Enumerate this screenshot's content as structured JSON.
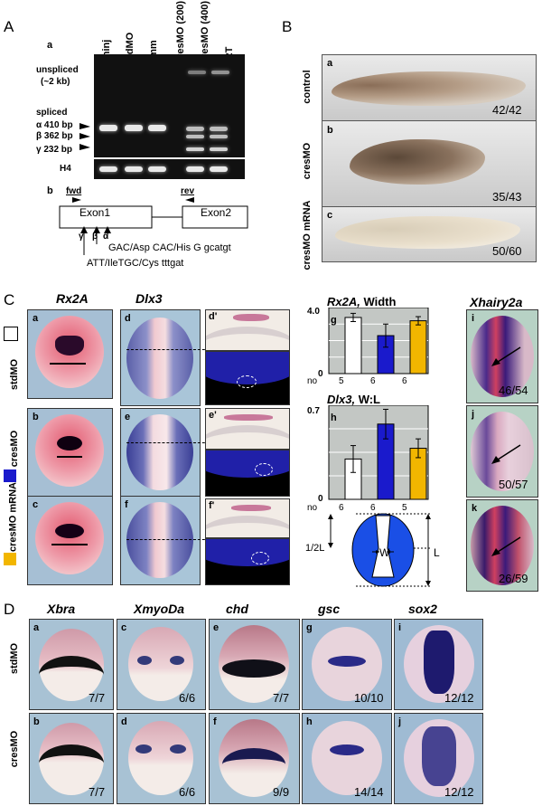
{
  "A": {
    "letter": "A",
    "a": {
      "sub": "a",
      "lanes": [
        "uninj",
        "stdMO",
        "5mm",
        "cresMO (200)",
        "cresMO (400)",
        "-RT"
      ],
      "unspliced": "unspliced",
      "unspliced_size": "(~2 kb)",
      "spliced": "spliced",
      "alpha": "α 410 bp",
      "beta": "β 362 bp",
      "gamma": "γ 232 bp",
      "h4": "H4"
    },
    "b": {
      "sub": "b",
      "fwd": "fwd",
      "rev": "rev",
      "exon1": "Exon1",
      "exon2": "Exon2",
      "gamma": "γ",
      "beta": "β",
      "alpha": "α",
      "seq_top": "GAC/Asp CAC/His G gcatgt",
      "seq_bottom": "ATT/IleTGC/Cys tttgat"
    }
  },
  "B": {
    "letter": "B",
    "panels": [
      {
        "sub": "a",
        "label": "control",
        "count": "42/42"
      },
      {
        "sub": "b",
        "label": "cresMO",
        "count": "35/43"
      },
      {
        "sub": "c",
        "label": "cresMO mRNA",
        "count": "50/60"
      }
    ]
  },
  "C": {
    "letter": "C",
    "col_rx2a": "Rx2A",
    "col_dlx3": "Dlx3",
    "row_labels": [
      "stdMO",
      "cresMO",
      "cresMO mRNA"
    ],
    "subs": [
      "a",
      "b",
      "c",
      "d",
      "e",
      "f",
      "d'",
      "e'",
      "f'"
    ],
    "g": {
      "sub": "g",
      "title_gene": "Rx2A,",
      "title_rest": " Width",
      "ymax": "4.0",
      "ymin": "0",
      "no": "no",
      "n": [
        "5",
        "6",
        "6"
      ]
    },
    "h": {
      "sub": "h",
      "title_gene": "Dlx3,",
      "title_rest": " W:L",
      "ymax": "0.7",
      "ymin": "0",
      "no": "no",
      "n": [
        "6",
        "6",
        "5"
      ]
    },
    "diagram": {
      "half": "1/2L",
      "w": "W",
      "l": "L"
    },
    "xhairy": {
      "title": "Xhairy2a",
      "panels": [
        {
          "sub": "i",
          "count": "46/54"
        },
        {
          "sub": "j",
          "count": "50/57"
        },
        {
          "sub": "k",
          "count": "26/59"
        }
      ]
    },
    "colors": {
      "std": "#ffffff",
      "cres": "#1a1acc",
      "mrna": "#f2b600"
    }
  },
  "chart_data": [
    {
      "type": "bar",
      "title": "Rx2A, Width",
      "categories": [
        "stdMO",
        "cresMO",
        "cresMO mRNA"
      ],
      "values": [
        3.4,
        2.3,
        3.2
      ],
      "errors": [
        0.25,
        0.7,
        0.25
      ],
      "ylim": [
        0,
        4.0
      ],
      "grid": true
    },
    {
      "type": "bar",
      "title": "Dlx3, W:L",
      "categories": [
        "stdMO",
        "cresMO",
        "cresMO mRNA"
      ],
      "values": [
        0.3,
        0.56,
        0.38
      ],
      "errors": [
        0.1,
        0.11,
        0.07
      ],
      "ylim": [
        0,
        0.7
      ],
      "grid": true
    }
  ],
  "D": {
    "letter": "D",
    "genes": [
      "Xbra",
      "XmyoDa",
      "chd",
      "gsc",
      "sox2"
    ],
    "rows": [
      "stdMO",
      "cresMO"
    ],
    "top": [
      {
        "sub": "a",
        "count": "7/7"
      },
      {
        "sub": "c",
        "count": "6/6"
      },
      {
        "sub": "e",
        "count": "7/7"
      },
      {
        "sub": "g",
        "count": "10/10"
      },
      {
        "sub": "i",
        "count": "12/12"
      }
    ],
    "bottom": [
      {
        "sub": "b",
        "count": "7/7"
      },
      {
        "sub": "d",
        "count": "6/6"
      },
      {
        "sub": "f",
        "count": "9/9"
      },
      {
        "sub": "h",
        "count": "14/14"
      },
      {
        "sub": "j",
        "count": "12/12"
      }
    ]
  }
}
